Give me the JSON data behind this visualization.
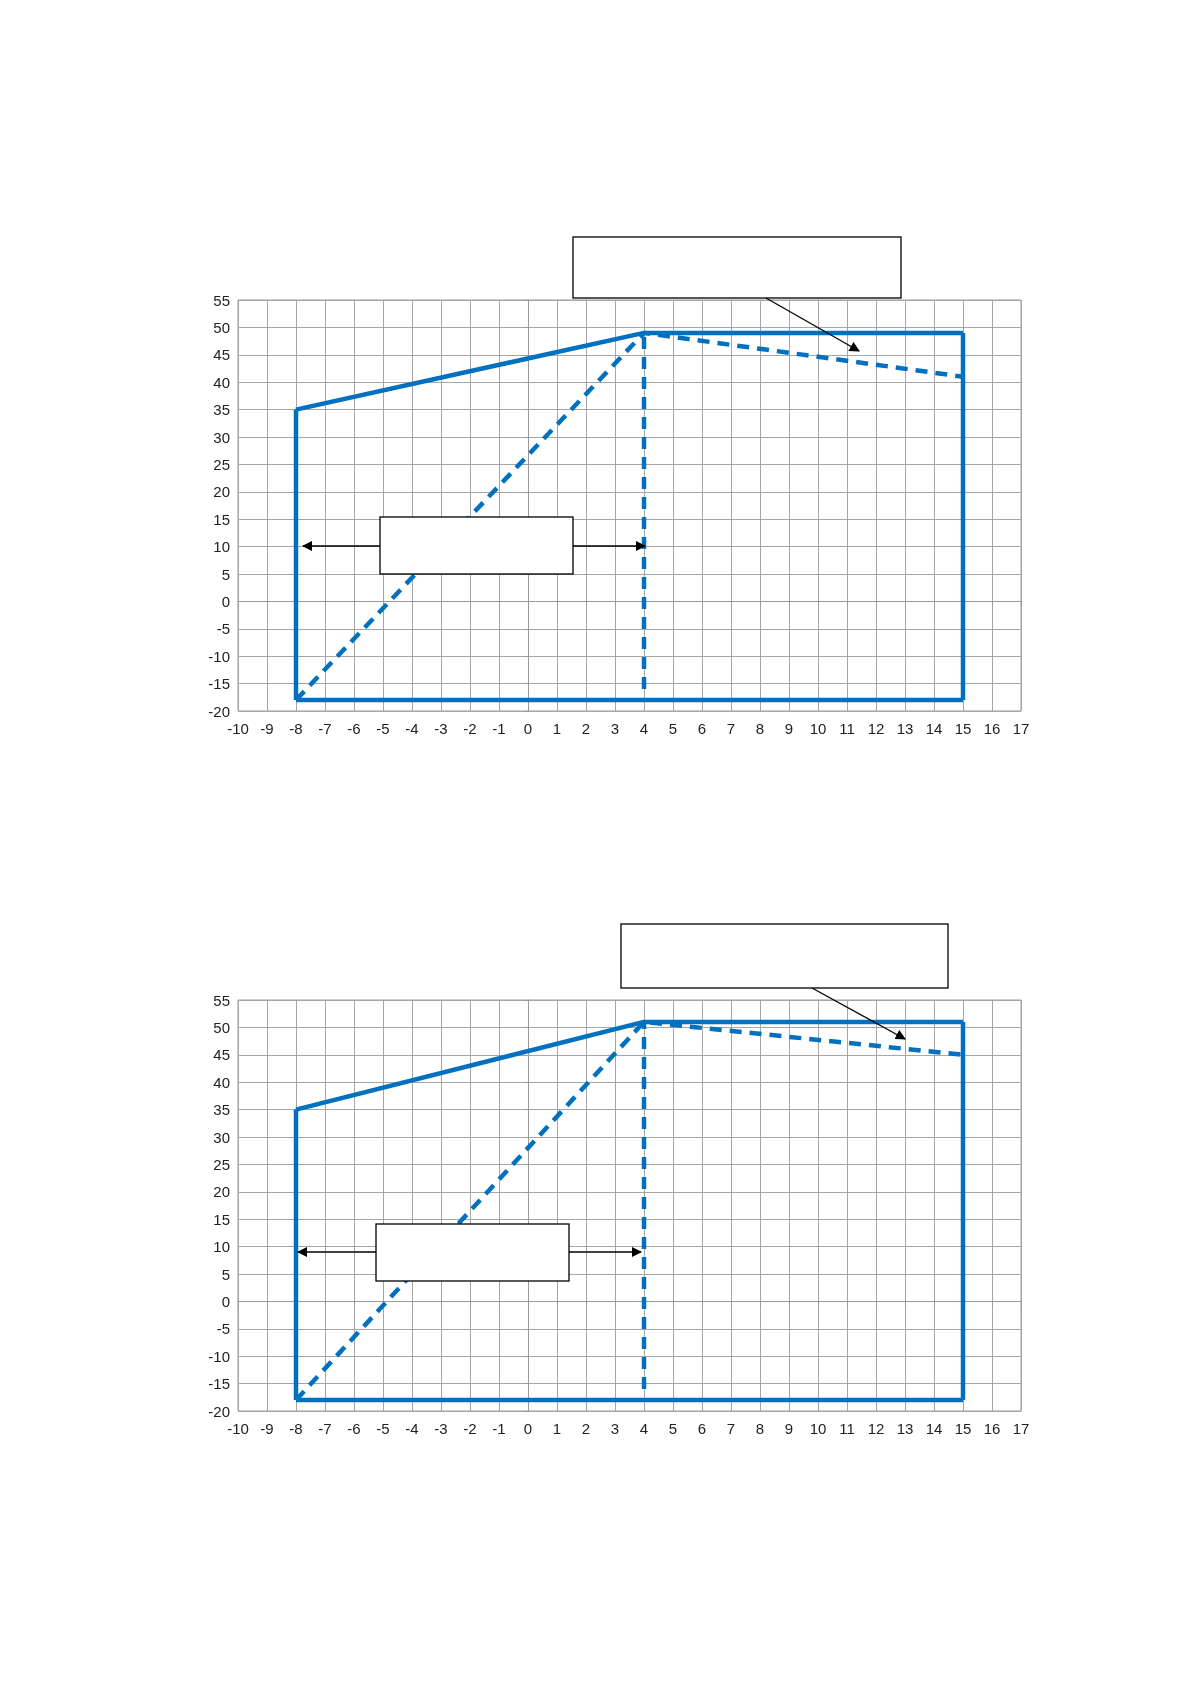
{
  "chart_data": [
    {
      "type": "line",
      "xlim": [
        -10,
        17
      ],
      "ylim": [
        -20,
        55
      ],
      "xticks": [
        -10,
        -9,
        -8,
        -7,
        -6,
        -5,
        -4,
        -3,
        -2,
        -1,
        0,
        1,
        2,
        3,
        4,
        5,
        6,
        7,
        8,
        9,
        10,
        11,
        12,
        13,
        14,
        15,
        16,
        17
      ],
      "yticks": [
        -20,
        -15,
        -10,
        -5,
        0,
        5,
        10,
        15,
        20,
        25,
        30,
        35,
        40,
        45,
        50,
        55
      ],
      "grid": true,
      "marker": "none",
      "series": [
        {
          "color": "#0070c0",
          "line_style": "solid",
          "x": [
            -8,
            4,
            15
          ],
          "values": [
            35,
            49,
            49
          ]
        },
        {
          "color": "#0070c0",
          "line_style": "solid",
          "x": [
            -8,
            15
          ],
          "values": [
            -18,
            -18
          ]
        },
        {
          "color": "#0070c0",
          "line_style": "solid",
          "x": [
            -8,
            -8
          ],
          "values": [
            -18,
            35
          ]
        },
        {
          "color": "#0070c0",
          "line_style": "solid",
          "x": [
            15,
            15
          ],
          "values": [
            -18,
            49
          ]
        },
        {
          "color": "#0070c0",
          "line_style": "dashed",
          "x": [
            -8,
            4,
            15
          ],
          "values": [
            -18,
            49,
            41
          ]
        },
        {
          "color": "#0070c0",
          "line_style": "dashed",
          "x": [
            4,
            4
          ],
          "values": [
            -16,
            49
          ]
        }
      ]
    },
    {
      "type": "line",
      "xlim": [
        -10,
        17
      ],
      "ylim": [
        -20,
        55
      ],
      "xticks": [
        -10,
        -9,
        -8,
        -7,
        -6,
        -5,
        -4,
        -3,
        -2,
        -1,
        0,
        1,
        2,
        3,
        4,
        5,
        6,
        7,
        8,
        9,
        10,
        11,
        12,
        13,
        14,
        15,
        16,
        17
      ],
      "yticks": [
        -20,
        -15,
        -10,
        -5,
        0,
        5,
        10,
        15,
        20,
        25,
        30,
        35,
        40,
        45,
        50,
        55
      ],
      "grid": true,
      "marker": "none",
      "series": [
        {
          "color": "#0070c0",
          "line_style": "solid",
          "x": [
            -8,
            4,
            15
          ],
          "values": [
            35,
            51,
            51
          ]
        },
        {
          "color": "#0070c0",
          "line_style": "solid",
          "x": [
            -8,
            15
          ],
          "values": [
            -18,
            -18
          ]
        },
        {
          "color": "#0070c0",
          "line_style": "solid",
          "x": [
            -8,
            -8
          ],
          "values": [
            -18,
            35
          ]
        },
        {
          "color": "#0070c0",
          "line_style": "solid",
          "x": [
            15,
            15
          ],
          "values": [
            -18,
            51
          ]
        },
        {
          "color": "#0070c0",
          "line_style": "dashed",
          "x": [
            -8,
            4,
            15
          ],
          "values": [
            -18,
            51,
            45
          ]
        },
        {
          "color": "#0070c0",
          "line_style": "dashed",
          "x": [
            4,
            4
          ],
          "values": [
            -16,
            51
          ]
        }
      ]
    }
  ]
}
